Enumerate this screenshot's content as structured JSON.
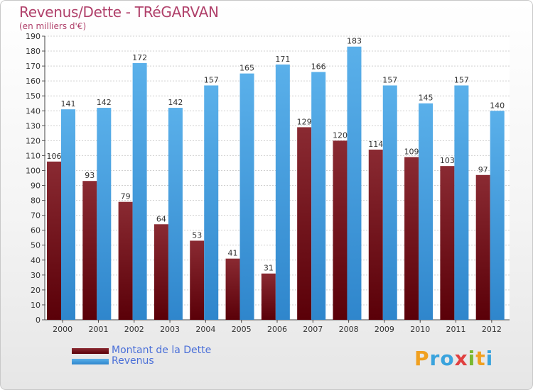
{
  "header": {
    "title": "Revenus/Dette - TRéGARVAN",
    "subtitle": "(en milliers d'€)"
  },
  "legend": {
    "items": [
      {
        "label": "Montant de la Dette",
        "color": "#6b1118"
      },
      {
        "label": "Revenus",
        "color": "#3f9be0"
      }
    ]
  },
  "logo": {
    "text": "Proxiti",
    "letters": [
      {
        "char": "P",
        "color": "#f0a020"
      },
      {
        "char": "r",
        "color": "#3aa3dd"
      },
      {
        "char": "o",
        "color": "#3aa3dd"
      },
      {
        "char": "x",
        "color": "#e04040"
      },
      {
        "char": "i",
        "color": "#7ab830"
      },
      {
        "char": "t",
        "color": "#f0a020"
      },
      {
        "char": "i",
        "color": "#3aa3dd"
      }
    ]
  },
  "chart_data": {
    "type": "bar",
    "title": "Revenus/Dette - TRéGARVAN",
    "subtitle": "(en milliers d'€)",
    "xlabel": "",
    "ylabel": "",
    "categories": [
      "2000",
      "2001",
      "2002",
      "2003",
      "2004",
      "2005",
      "2006",
      "2007",
      "2008",
      "2009",
      "2010",
      "2011",
      "2012"
    ],
    "series": [
      {
        "name": "Montant de la Dette",
        "color": "#6b1118",
        "values": [
          106,
          93,
          79,
          64,
          53,
          41,
          31,
          129,
          120,
          114,
          109,
          103,
          97
        ]
      },
      {
        "name": "Revenus",
        "color": "#3f9be0",
        "values": [
          141,
          142,
          172,
          142,
          157,
          165,
          171,
          166,
          183,
          157,
          145,
          157,
          140
        ]
      }
    ],
    "ylim": [
      0,
      190
    ],
    "yticks": [
      0,
      10,
      20,
      30,
      40,
      50,
      60,
      70,
      80,
      90,
      100,
      110,
      120,
      130,
      140,
      150,
      160,
      170,
      180,
      190
    ],
    "grid": true,
    "legend": "bottom-left"
  }
}
